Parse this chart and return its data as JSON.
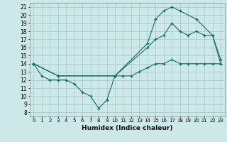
{
  "xlabel": "Humidex (Indice chaleur)",
  "background_color": "#cce8e8",
  "grid_color": "#aacccc",
  "line_color": "#1a6868",
  "xlim": [
    -0.5,
    23.5
  ],
  "ylim": [
    7.5,
    21.5
  ],
  "yticks": [
    8,
    9,
    10,
    11,
    12,
    13,
    14,
    15,
    16,
    17,
    18,
    19,
    20,
    21
  ],
  "xticks": [
    0,
    1,
    2,
    3,
    4,
    5,
    6,
    7,
    8,
    9,
    10,
    11,
    12,
    13,
    14,
    15,
    16,
    17,
    18,
    19,
    20,
    21,
    22,
    23
  ],
  "line1_x": [
    0,
    1,
    2,
    3,
    4,
    5,
    6,
    7,
    8,
    9,
    10,
    11,
    12,
    13,
    14,
    15,
    16,
    17,
    18,
    19,
    20,
    21,
    22,
    23
  ],
  "line1_y": [
    14.0,
    12.5,
    12.0,
    12.0,
    12.0,
    11.5,
    10.5,
    10.0,
    8.5,
    9.5,
    12.5,
    12.5,
    12.5,
    13.0,
    13.5,
    14.0,
    14.0,
    14.5,
    14.0,
    14.0,
    14.0,
    14.0,
    14.0,
    14.0
  ],
  "line2_x": [
    0,
    3,
    10,
    14,
    15,
    16,
    17,
    18,
    20,
    22,
    23
  ],
  "line2_y": [
    14.0,
    12.5,
    12.5,
    16.5,
    19.5,
    20.5,
    21.0,
    20.5,
    19.5,
    17.5,
    14.0
  ],
  "line3_x": [
    0,
    3,
    10,
    14,
    15,
    16,
    17,
    18,
    19,
    20,
    21,
    22,
    23
  ],
  "line3_y": [
    14.0,
    12.5,
    12.5,
    16.0,
    17.0,
    17.5,
    19.0,
    18.0,
    17.5,
    18.0,
    17.5,
    17.5,
    14.5
  ]
}
